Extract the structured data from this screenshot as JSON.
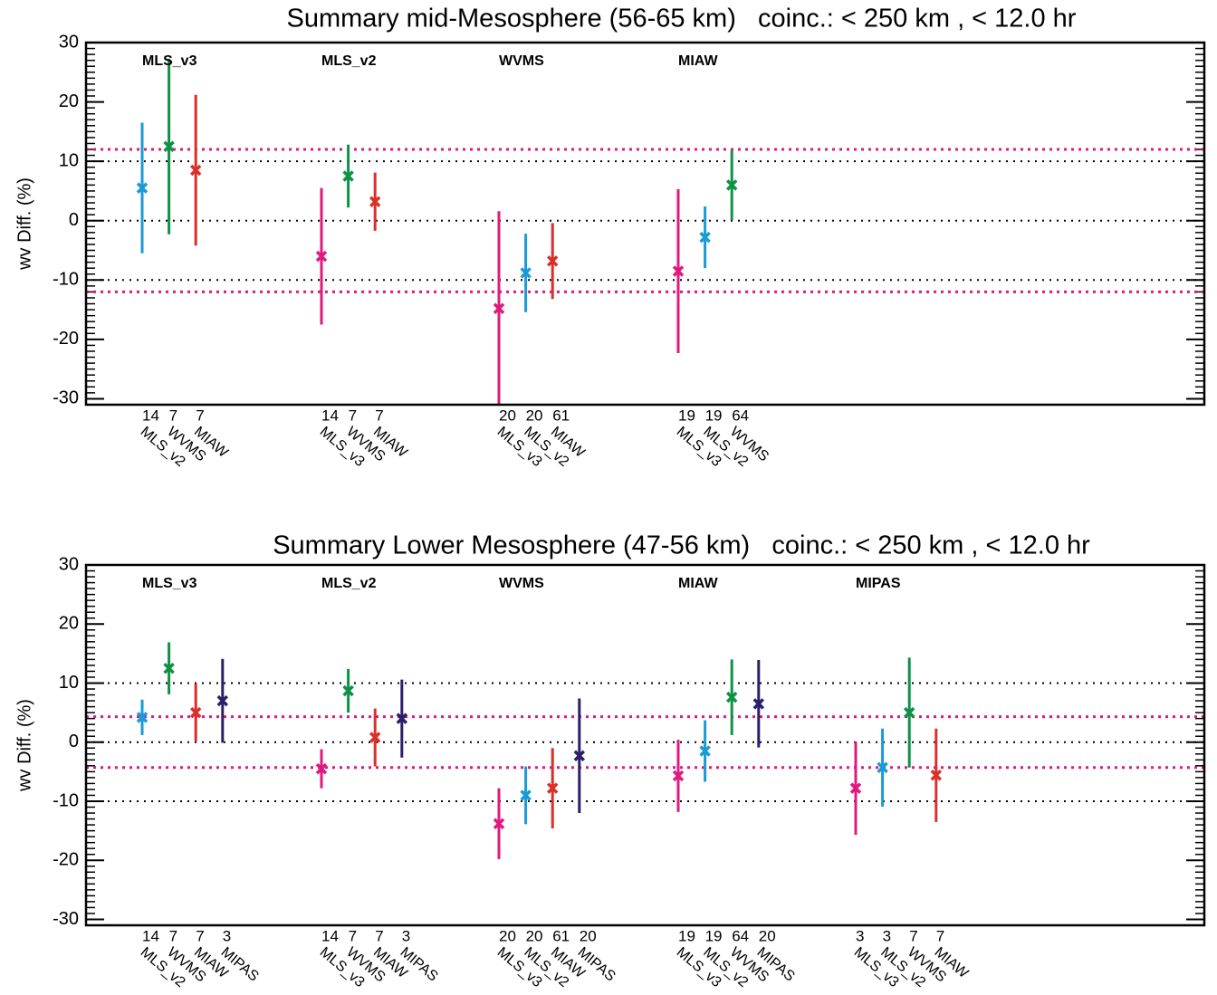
{
  "chart_data": [
    {
      "type": "errorbar",
      "title": "Summary mid-Mesosphere (56-65 km)   coinc.: < 250 km , < 12.0 hr",
      "ylabel": "wv Diff. (%)",
      "ylim": [
        -31,
        30
      ],
      "yticks": [
        -30,
        -20,
        -10,
        0,
        10,
        20,
        30
      ],
      "minor_tick_step": 1,
      "grid_values": [
        -10,
        0,
        10
      ],
      "reference_lines": [
        {
          "value": 12,
          "color": "#e0197f"
        },
        {
          "value": -12,
          "color": "#e0197f"
        }
      ],
      "groups": [
        {
          "name": "MLS_v3",
          "color": "#e0197f",
          "series": [
            {
              "name": "MLS_v2",
              "color": "#1a9ad6",
              "count": 14,
              "value": 5.5,
              "error": 11
            },
            {
              "name": "WVMS",
              "color": "#0f9146",
              "count": 7,
              "value": 12.5,
              "error": 14.8
            },
            {
              "name": "MIAW",
              "color": "#d9302a",
              "count": 7,
              "value": 8.5,
              "error": 12.7
            }
          ]
        },
        {
          "name": "MLS_v2",
          "color": "#1a9ad6",
          "series": [
            {
              "name": "MLS_v3",
              "color": "#e0197f",
              "count": 14,
              "value": -6,
              "error": 11.5
            },
            {
              "name": "WVMS",
              "color": "#0f9146",
              "count": 7,
              "value": 7.5,
              "error": 5.3
            },
            {
              "name": "MIAW",
              "color": "#d9302a",
              "count": 7,
              "value": 3.2,
              "error": 4.9
            }
          ]
        },
        {
          "name": "WVMS",
          "color": "#0f9146",
          "series": [
            {
              "name": "MLS_v3",
              "color": "#e0197f",
              "count": 20,
              "value": -14.8,
              "error": 16.4
            },
            {
              "name": "MLS_v2",
              "color": "#1a9ad6",
              "count": 20,
              "value": -8.8,
              "error": 6.6
            },
            {
              "name": "MIAW",
              "color": "#d9302a",
              "count": 61,
              "value": -6.8,
              "error": 6.4
            }
          ]
        },
        {
          "name": "MIAW",
          "color": "#d9302a",
          "series": [
            {
              "name": "MLS_v3",
              "color": "#e0197f",
              "count": 19,
              "value": -8.5,
              "error": 13.8
            },
            {
              "name": "MLS_v2",
              "color": "#1a9ad6",
              "count": 19,
              "value": -2.8,
              "error": 5.2
            },
            {
              "name": "WVMS",
              "color": "#0f9146",
              "count": 64,
              "value": 6,
              "error": 5.9
            }
          ]
        }
      ]
    },
    {
      "type": "errorbar",
      "title": "Summary Lower Mesosphere (47-56 km)   coinc.: < 250 km , < 12.0 hr",
      "ylabel": "wv Diff. (%)",
      "ylim": [
        -31,
        30
      ],
      "yticks": [
        -30,
        -20,
        -10,
        0,
        10,
        20,
        30
      ],
      "minor_tick_step": 1,
      "grid_values": [
        -10,
        0,
        10
      ],
      "reference_lines": [
        {
          "value": 4.3,
          "color": "#e0197f"
        },
        {
          "value": -4.3,
          "color": "#e0197f"
        }
      ],
      "groups": [
        {
          "name": "MLS_v3",
          "color": "#e0197f",
          "series": [
            {
              "name": "MLS_v2",
              "color": "#1a9ad6",
              "count": 14,
              "value": 4.2,
              "error": 3
            },
            {
              "name": "WVMS",
              "color": "#0f9146",
              "count": 7,
              "value": 12.5,
              "error": 4.4
            },
            {
              "name": "MIAW",
              "color": "#d9302a",
              "count": 7,
              "value": 5,
              "error": 4.9
            },
            {
              "name": "MIPAS",
              "color": "#2b1f6b",
              "count": 3,
              "value": 7,
              "error": 7.1
            }
          ]
        },
        {
          "name": "MLS_v2",
          "color": "#1a9ad6",
          "series": [
            {
              "name": "MLS_v3",
              "color": "#e0197f",
              "count": 14,
              "value": -4.5,
              "error": 3.3
            },
            {
              "name": "WVMS",
              "color": "#0f9146",
              "count": 7,
              "value": 8.7,
              "error": 3.7
            },
            {
              "name": "MIAW",
              "color": "#d9302a",
              "count": 7,
              "value": 0.8,
              "error": 4.9
            },
            {
              "name": "MIPAS",
              "color": "#2b1f6b",
              "count": 3,
              "value": 4,
              "error": 6.6
            }
          ]
        },
        {
          "name": "WVMS",
          "color": "#0f9146",
          "series": [
            {
              "name": "MLS_v3",
              "color": "#e0197f",
              "count": 20,
              "value": -13.8,
              "error": 6
            },
            {
              "name": "MLS_v2",
              "color": "#1a9ad6",
              "count": 20,
              "value": -9,
              "error": 4.9
            },
            {
              "name": "MIAW",
              "color": "#d9302a",
              "count": 61,
              "value": -7.8,
              "error": 6.8
            },
            {
              "name": "MIPAS",
              "color": "#2b1f6b",
              "count": 20,
              "value": -2.3,
              "error": 9.7
            }
          ]
        },
        {
          "name": "MIAW",
          "color": "#d9302a",
          "series": [
            {
              "name": "MLS_v3",
              "color": "#e0197f",
              "count": 19,
              "value": -5.7,
              "error": 6.1
            },
            {
              "name": "MLS_v2",
              "color": "#1a9ad6",
              "count": 19,
              "value": -1.5,
              "error": 5.2
            },
            {
              "name": "WVMS",
              "color": "#0f9146",
              "count": 64,
              "value": 7.6,
              "error": 6.4
            },
            {
              "name": "MIPAS",
              "color": "#2b1f6b",
              "count": 20,
              "value": 6.5,
              "error": 7.4
            }
          ]
        },
        {
          "name": "MIPAS",
          "color": "#2b1f6b",
          "series": [
            {
              "name": "MLS_v3",
              "color": "#e0197f",
              "count": 3,
              "value": -7.8,
              "error": 7.9
            },
            {
              "name": "MLS_v2",
              "color": "#1a9ad6",
              "count": 3,
              "value": -4.3,
              "error": 6.6
            },
            {
              "name": "WVMS",
              "color": "#0f9146",
              "count": 7,
              "value": 5,
              "error": 9.3
            },
            {
              "name": "MIAW",
              "color": "#d9302a",
              "count": 7,
              "value": -5.6,
              "error": 7.9
            }
          ]
        }
      ]
    }
  ]
}
